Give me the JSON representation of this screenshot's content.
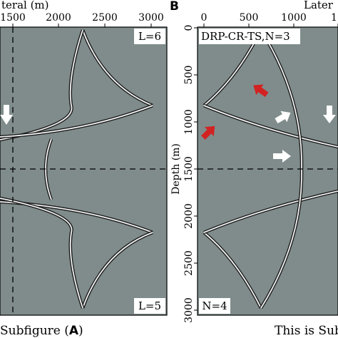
{
  "colors": {
    "panel_bg": "#7f8c8b",
    "wavefront_outer": "#1a1a1a",
    "wavefront_inner": "#f2f2f2",
    "arrow_white": "#ffffff",
    "arrow_red": "#d32222"
  },
  "panel_a": {
    "axis_title": "teral (m)",
    "x_ticks": [
      "1500",
      "2000",
      "2500",
      "3000"
    ],
    "label_top": "L=6",
    "label_bottom": "L=5",
    "caption_prefix": "Subfigure (",
    "caption_letter": "A",
    "caption_suffix": ")"
  },
  "panel_b": {
    "letter": "B",
    "axis_title": "Later",
    "x_ticks": [
      "0",
      "500",
      "1000",
      "15"
    ],
    "y_ticks": [
      "0",
      "500",
      "1000",
      "1500",
      "2000",
      "2500",
      "3000"
    ],
    "y_label": "Depth (m)",
    "title_box": "DRP-CR-TS,N=3",
    "label_bottom": "N=4",
    "caption": "This is Sub"
  }
}
